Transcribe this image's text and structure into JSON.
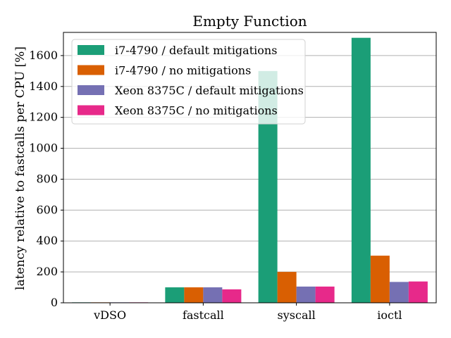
{
  "chart_data": {
    "type": "bar",
    "title": "Empty Function",
    "xlabel": "",
    "ylabel": "latency relative to fastcalls per CPU [%]",
    "categories": [
      "vDSO",
      "fastcall",
      "syscall",
      "ioctl"
    ],
    "ylim": [
      0,
      1750
    ],
    "yticks": [
      0,
      200,
      400,
      600,
      800,
      1000,
      1200,
      1400,
      1600
    ],
    "grid": true,
    "legend_position": "top-left",
    "series": [
      {
        "name": "i7-4790 / default mitigations",
        "color": "#1b9e77",
        "values": [
          3,
          100,
          1500,
          1715
        ]
      },
      {
        "name": "i7-4790 / no mitigations",
        "color": "#d95f02",
        "values": [
          3,
          100,
          200,
          305
        ]
      },
      {
        "name": "Xeon 8375C / default mitigations",
        "color": "#7570b3",
        "values": [
          3,
          100,
          105,
          135
        ]
      },
      {
        "name": "Xeon 8375C / no mitigations",
        "color": "#e7298a",
        "values": [
          3,
          87,
          105,
          138
        ]
      }
    ]
  }
}
